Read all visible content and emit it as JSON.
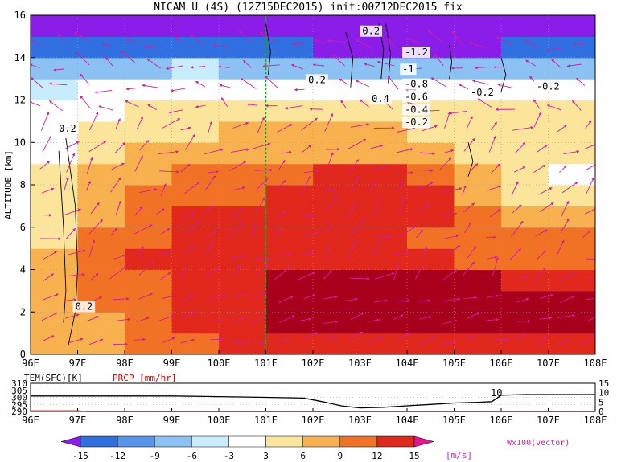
{
  "title": "NICAM U (4S) (12Z15DEC2015) init:00Z12DEC2015 fix",
  "main_panel": {
    "ylabel": "ALTITUDE [km]",
    "yticks": [
      "0",
      "2",
      "4",
      "6",
      "8",
      "10",
      "12",
      "14",
      "16"
    ],
    "xticks": [
      "96E",
      "97E",
      "98E",
      "99E",
      "100E",
      "101E",
      "102E",
      "103E",
      "104E",
      "105E",
      "106E",
      "107E",
      "108E"
    ],
    "contour_labels": [
      "0.2",
      "0.2",
      "-0.2",
      "-1.2",
      "-1",
      "-0.8",
      "-0.6",
      "-0.4",
      "-0.2",
      "0.4",
      "0.2",
      "-0.2",
      "0.2"
    ]
  },
  "lower_panel": {
    "left_label": "TEM(SFC)[K]",
    "right_label": "PRCP [mm/hr]",
    "left_ticks": [
      "310",
      "305",
      "300",
      "295",
      "290"
    ],
    "right_ticks": [
      "15",
      "10",
      "5",
      "0"
    ],
    "xticks": [
      "96E",
      "97E",
      "98E",
      "99E",
      "100E",
      "101E",
      "102E",
      "103E",
      "104E",
      "105E",
      "106E",
      "107E",
      "108E"
    ],
    "annotation": "10"
  },
  "colorbar": {
    "labels": [
      "-15",
      "-12",
      "-9",
      "-6",
      "-3",
      "3",
      "6",
      "9",
      "12",
      "15"
    ],
    "unit": "[m/s]",
    "colors": [
      "#8a1ee8",
      "#2f6fe0",
      "#5595ea",
      "#8cc1f4",
      "#c7ecfb",
      "#ffffff",
      "#fae59a",
      "#f7b24f",
      "#f17225",
      "#e0281c",
      "#a8001c",
      "#e4168e"
    ],
    "vector_label": "Wx100(vector)"
  },
  "chart_data": [
    {
      "type": "heatmap",
      "title": "NICAM U (4S) (12Z15DEC2015) init:00Z12DEC2015 fix",
      "xlabel": "",
      "ylabel": "ALTITUDE [km]",
      "x_range": [
        96,
        108
      ],
      "ylim": [
        0,
        16
      ],
      "x_ticks": [
        "96E",
        "97E",
        "98E",
        "99E",
        "100E",
        "101E",
        "102E",
        "103E",
        "104E",
        "105E",
        "106E",
        "107E",
        "108E"
      ],
      "y_ticks": [
        0,
        2,
        4,
        6,
        8,
        10,
        12,
        14,
        16
      ],
      "levels": [
        -15,
        -12,
        -9,
        -6,
        -3,
        3,
        6,
        9,
        12,
        15
      ],
      "unit": "[m/s]",
      "reference_line_x": 101,
      "x_centers": [
        96.5,
        97.5,
        98.5,
        99.5,
        100.5,
        101.5,
        102.5,
        103.5,
        104.5,
        105.5,
        106.5,
        107.5
      ],
      "y_centers": [
        0.5,
        1.5,
        2.5,
        3.5,
        4.5,
        5.5,
        6.5,
        7.5,
        8.5,
        9.5,
        10.5,
        11.5,
        12.5,
        13.5,
        14.5,
        15.5
      ],
      "values": [
        [
          6,
          8,
          10,
          11,
          12,
          12,
          13,
          13,
          13,
          14,
          14,
          13
        ],
        [
          7,
          8,
          10,
          12,
          14,
          15,
          16,
          16,
          16,
          17,
          17,
          16
        ],
        [
          7,
          9,
          10,
          12,
          14,
          16,
          17,
          17,
          17,
          17,
          16,
          15
        ],
        [
          7,
          9,
          11,
          12,
          13,
          15,
          17,
          17,
          16,
          15,
          14,
          13
        ],
        [
          6,
          10,
          12,
          13,
          13,
          14,
          14,
          13,
          12,
          11,
          10,
          10
        ],
        [
          5,
          9,
          11,
          13,
          13,
          13,
          13,
          12,
          11,
          10,
          9,
          9
        ],
        [
          5,
          8,
          10,
          12,
          12,
          12,
          13,
          13,
          12,
          9,
          8,
          7
        ],
        [
          4,
          7,
          9,
          10,
          11,
          12,
          13,
          13,
          12,
          8,
          4,
          3
        ],
        [
          3,
          6,
          8,
          9,
          10,
          11,
          12,
          12,
          11,
          7,
          3,
          2
        ],
        [
          2,
          5,
          6,
          7,
          8,
          8,
          8,
          8,
          7,
          5,
          4,
          4
        ],
        [
          2,
          4,
          5,
          5,
          6,
          7,
          7,
          6,
          5,
          4,
          4,
          4
        ],
        [
          1,
          2,
          3,
          3,
          4,
          4,
          4,
          4,
          3,
          3,
          3,
          3
        ],
        [
          -4,
          -3,
          -3,
          -2,
          -2,
          -2,
          -2,
          -2,
          -2,
          -3,
          -3,
          -3
        ],
        [
          -8,
          -7,
          -7,
          -6,
          -7,
          -8,
          -8,
          -8,
          -8,
          -9,
          -9,
          -9
        ],
        [
          -14,
          -14,
          -14,
          -14,
          -15,
          -15,
          -16,
          -16,
          -16,
          -16,
          -15,
          -15
        ],
        [
          -16,
          -16,
          -16,
          -16,
          -16,
          -16,
          -16,
          -16,
          -16,
          -16,
          -16,
          -16
        ]
      ]
    },
    {
      "type": "line",
      "title": "",
      "x_range": [
        96,
        108
      ],
      "series": [
        {
          "name": "TEM(SFC)[K]",
          "x": [
            96,
            97,
            98,
            99,
            100,
            101,
            101.8,
            102.2,
            102.6,
            103,
            103.5,
            104,
            104.5,
            105,
            105.5,
            105.8,
            106,
            106.5,
            107,
            108
          ],
          "values": [
            301,
            301,
            301,
            301,
            300.5,
            300,
            299.5,
            297,
            294,
            292.5,
            293,
            294,
            295,
            296,
            296.5,
            297,
            301.5,
            302,
            302,
            302
          ]
        },
        {
          "name": "PRCP [mm/hr]",
          "x": [
            96,
            97,
            97.2,
            98,
            108
          ],
          "values": [
            0.3,
            0.3,
            0,
            0,
            0
          ]
        }
      ],
      "ylim_left": [
        290,
        310
      ],
      "ylim_right": [
        0,
        15
      ]
    }
  ]
}
